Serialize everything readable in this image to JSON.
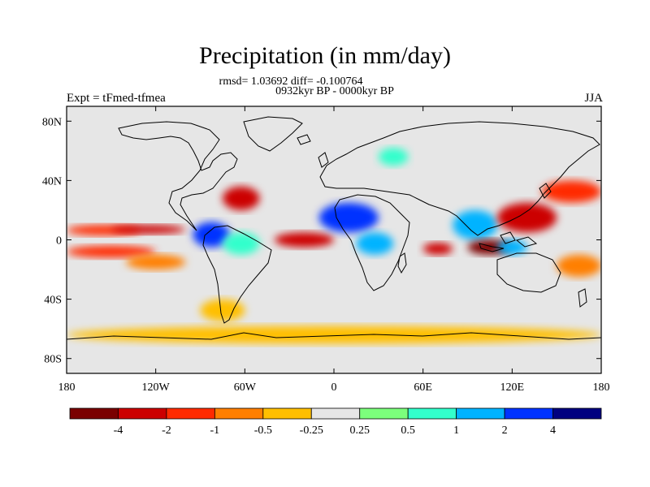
{
  "title": "Precipitation (in mm/day)",
  "stats_line": "rmsd= 1.03692 diff= -0.100764",
  "period_line": "0932kyr BP - 0000kyr BP",
  "experiment": "Expt = tFmed-tfmea",
  "season": "JJA",
  "map": {
    "projection": "cylindrical equidistant",
    "lon_range": [
      -180,
      180
    ],
    "lat_range": [
      -90,
      90
    ],
    "lon_ticks": [
      "180",
      "120W",
      "60W",
      "0",
      "60E",
      "120E",
      "180"
    ],
    "lat_ticks": [
      "80N",
      "40N",
      "0",
      "40S",
      "80S"
    ],
    "lon_tick_values": [
      -180,
      -120,
      -60,
      0,
      60,
      120,
      180
    ],
    "lat_tick_values": [
      80,
      40,
      0,
      -40,
      -80
    ],
    "background_color": "#e6e6e6"
  },
  "colorbar": {
    "labels": [
      "-4",
      "-2",
      "-1",
      "-0.5",
      "-0.25",
      "0.25",
      "0.5",
      "1",
      "2",
      "4"
    ],
    "colors": [
      "#7a0000",
      "#cc0000",
      "#ff2a00",
      "#ff7f00",
      "#ffbf00",
      "#e6e6e6",
      "#7cff7c",
      "#33ffcc",
      "#00b3ff",
      "#0033ff",
      "#000080"
    ]
  },
  "chart_data": {
    "type": "heatmap",
    "title": "Precipitation (in mm/day)",
    "levels": [
      -4,
      -2,
      -1,
      -0.5,
      -0.25,
      0.25,
      0.5,
      1,
      2,
      4
    ],
    "anomaly_regions": [
      {
        "lon": [
          -180,
          -130
        ],
        "lat": [
          3,
          10
        ],
        "level": -1
      },
      {
        "lon": [
          -150,
          -100
        ],
        "lat": [
          4,
          10
        ],
        "level": -2
      },
      {
        "lon": [
          -180,
          -120
        ],
        "lat": [
          -12,
          -4
        ],
        "level": -1
      },
      {
        "lon": [
          -140,
          -100
        ],
        "lat": [
          -20,
          -10
        ],
        "level": -0.5
      },
      {
        "lon": [
          -95,
          -70
        ],
        "lat": [
          -5,
          12
        ],
        "level": 4
      },
      {
        "lon": [
          -75,
          -50
        ],
        "lat": [
          -10,
          5
        ],
        "level": 1
      },
      {
        "lon": [
          -75,
          -50
        ],
        "lat": [
          20,
          36
        ],
        "level": -2
      },
      {
        "lon": [
          -40,
          0
        ],
        "lat": [
          -5,
          5
        ],
        "level": -2
      },
      {
        "lon": [
          -10,
          30
        ],
        "lat": [
          5,
          25
        ],
        "level": 4
      },
      {
        "lon": [
          15,
          40
        ],
        "lat": [
          -10,
          5
        ],
        "level": 2
      },
      {
        "lon": [
          30,
          50
        ],
        "lat": [
          50,
          62
        ],
        "level": 1
      },
      {
        "lon": [
          60,
          80
        ],
        "lat": [
          -10,
          -2
        ],
        "level": -2
      },
      {
        "lon": [
          80,
          110
        ],
        "lat": [
          0,
          20
        ],
        "level": 2
      },
      {
        "lon": [
          90,
          120
        ],
        "lat": [
          -10,
          0
        ],
        "level": -4
      },
      {
        "lon": [
          110,
          150
        ],
        "lat": [
          5,
          25
        ],
        "level": -2
      },
      {
        "lon": [
          110,
          130
        ],
        "lat": [
          -10,
          0
        ],
        "level": 2
      },
      {
        "lon": [
          140,
          180
        ],
        "lat": [
          25,
          40
        ],
        "level": -1
      },
      {
        "lon": [
          150,
          180
        ],
        "lat": [
          -25,
          -10
        ],
        "level": -0.5
      },
      {
        "lon": [
          -180,
          180
        ],
        "lat": [
          -70,
          -58
        ],
        "level": -0.25
      },
      {
        "lon": [
          -90,
          -60
        ],
        "lat": [
          -55,
          -40
        ],
        "level": -0.25
      }
    ]
  }
}
